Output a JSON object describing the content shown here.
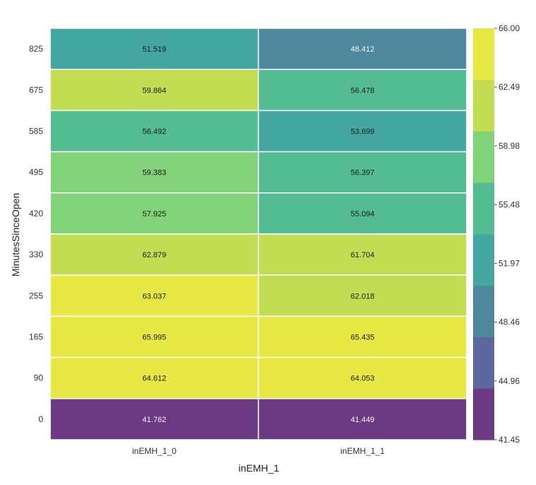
{
  "chart_data": {
    "type": "heatmap",
    "xlabel": "inEMH_1",
    "ylabel": "MinutesSinceOpen",
    "x_categories": [
      "inEMH_1_0",
      "inEMH_1_1"
    ],
    "y_categories": [
      "825",
      "675",
      "585",
      "495",
      "420",
      "330",
      "255",
      "165",
      "90",
      "0"
    ],
    "values": [
      [
        51.519,
        48.412
      ],
      [
        59.864,
        56.478
      ],
      [
        56.492,
        53.699
      ],
      [
        59.383,
        56.397
      ],
      [
        57.925,
        55.094
      ],
      [
        62.879,
        61.704
      ],
      [
        63.037,
        62.018
      ],
      [
        65.995,
        65.435
      ],
      [
        64.612,
        64.053
      ],
      [
        41.762,
        41.449
      ]
    ],
    "value_labels": [
      [
        "51.519",
        "48.412"
      ],
      [
        "59.864",
        "56.478"
      ],
      [
        "56.492",
        "53.699"
      ],
      [
        "59.383",
        "56.397"
      ],
      [
        "57.925",
        "55.094"
      ],
      [
        "62.879",
        "61.704"
      ],
      [
        "63.037",
        "62.018"
      ],
      [
        "65.995",
        "65.435"
      ],
      [
        "64.612",
        "64.053"
      ],
      [
        "41.762",
        "41.449"
      ]
    ],
    "colorbar": {
      "ticks": [
        "66.00",
        "62.49",
        "58.98",
        "55.48",
        "51.97",
        "48.46",
        "44.96",
        "41.45"
      ],
      "range": [
        41.45,
        66.0
      ],
      "colormap": "viridis (discrete)",
      "band_colors": [
        "#6c3a83",
        "#5d679d",
        "#4f879c",
        "#43a6a0",
        "#54bc92",
        "#82d27a",
        "#c2dd52",
        "#e7e843"
      ]
    },
    "grid": false
  }
}
